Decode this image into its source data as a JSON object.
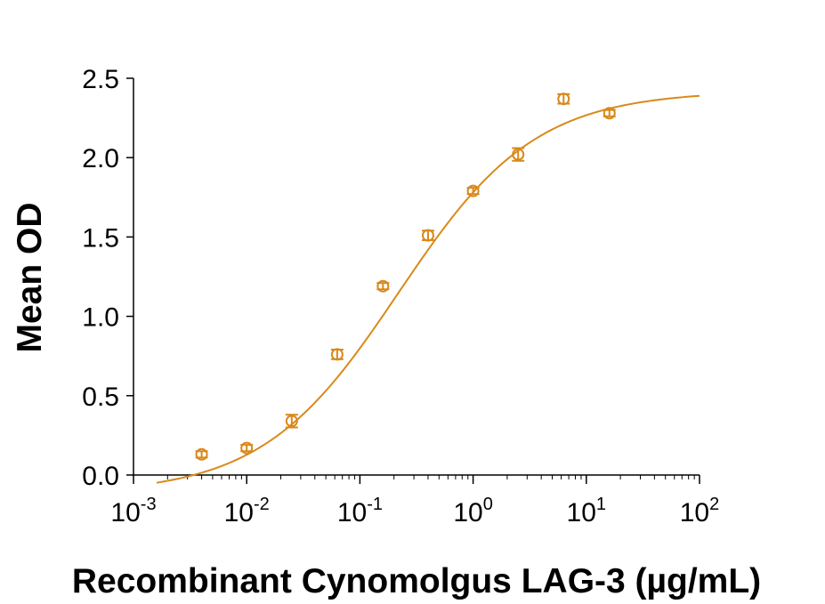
{
  "chart_data": {
    "type": "scatter",
    "title": "",
    "xlabel": "Recombinant Cynomolgus LAG-3 (µg/mL)",
    "ylabel": "Mean OD",
    "x_scale": "log",
    "xlim": [
      0.001,
      100
    ],
    "ylim": [
      0.0,
      2.5
    ],
    "x_ticks": [
      {
        "value": 0.001,
        "base": "10",
        "exp": "-3"
      },
      {
        "value": 0.01,
        "base": "10",
        "exp": "-2"
      },
      {
        "value": 0.1,
        "base": "10",
        "exp": "-1"
      },
      {
        "value": 1,
        "base": "10",
        "exp": "0"
      },
      {
        "value": 10,
        "base": "10",
        "exp": "1"
      },
      {
        "value": 100,
        "base": "10",
        "exp": "2"
      }
    ],
    "y_ticks": [
      {
        "value": 0.0,
        "label": "0.0"
      },
      {
        "value": 0.5,
        "label": "0.5"
      },
      {
        "value": 1.0,
        "label": "1.0"
      },
      {
        "value": 1.5,
        "label": "1.5"
      },
      {
        "value": 2.0,
        "label": "2.0"
      },
      {
        "value": 2.5,
        "label": "2.5"
      }
    ],
    "grid": false,
    "color": "#D9891A",
    "series": [
      {
        "points": [
          {
            "x": 0.004,
            "y": 0.13,
            "err": 0.02
          },
          {
            "x": 0.01,
            "y": 0.17,
            "err": 0.02
          },
          {
            "x": 0.025,
            "y": 0.34,
            "err": 0.04
          },
          {
            "x": 0.063,
            "y": 0.76,
            "err": 0.03
          },
          {
            "x": 0.16,
            "y": 1.19,
            "err": 0.02
          },
          {
            "x": 0.4,
            "y": 1.51,
            "err": 0.03
          },
          {
            "x": 1.0,
            "y": 1.79,
            "err": 0.02
          },
          {
            "x": 2.5,
            "y": 2.02,
            "err": 0.04
          },
          {
            "x": 6.3,
            "y": 2.37,
            "err": 0.03
          },
          {
            "x": 16,
            "y": 2.28,
            "err": 0.02
          }
        ]
      }
    ],
    "fit_curve": {
      "model": "4PL",
      "bottom": -0.12,
      "top": 2.42,
      "ec50": 0.22,
      "hill": 0.72,
      "x_range": [
        0.0016,
        100
      ]
    }
  }
}
